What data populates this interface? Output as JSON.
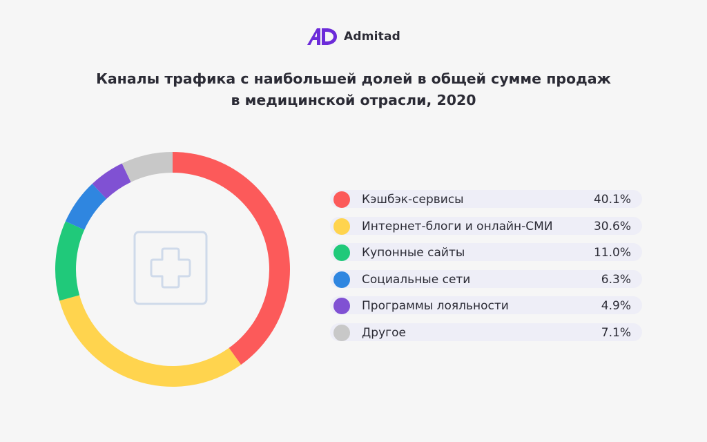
{
  "brand": {
    "name": "Admitad",
    "logo_icon": "admitad-logo-icon",
    "logo_color": "#6c2bd9"
  },
  "chart_data": {
    "type": "pie",
    "title_lines": [
      "Каналы трафика с наибольшей долей в общей сумме продаж",
      "в медицинской отрасли, 2020"
    ],
    "center_icon": "medical-cross-icon",
    "unit": "%",
    "slices": [
      {
        "label": "Кэшбэк-сервисы",
        "value": 40.1,
        "value_label": "40.1%",
        "color": "#fc5a5a"
      },
      {
        "label": "Интернет-блоги и онлайн-СМИ",
        "value": 30.6,
        "value_label": "30.6%",
        "color": "#ffd44e"
      },
      {
        "label": "Купонные сайты",
        "value": 11.0,
        "value_label": "11.0%",
        "color": "#20c97a"
      },
      {
        "label": "Социальные сети",
        "value": 6.3,
        "value_label": "6.3%",
        "color": "#2f86e0"
      },
      {
        "label": "Программы лояльности",
        "value": 4.9,
        "value_label": "4.9%",
        "color": "#8051d3"
      },
      {
        "label": "Другое",
        "value": 7.1,
        "value_label": "7.1%",
        "color": "#c8c8c8"
      }
    ]
  }
}
